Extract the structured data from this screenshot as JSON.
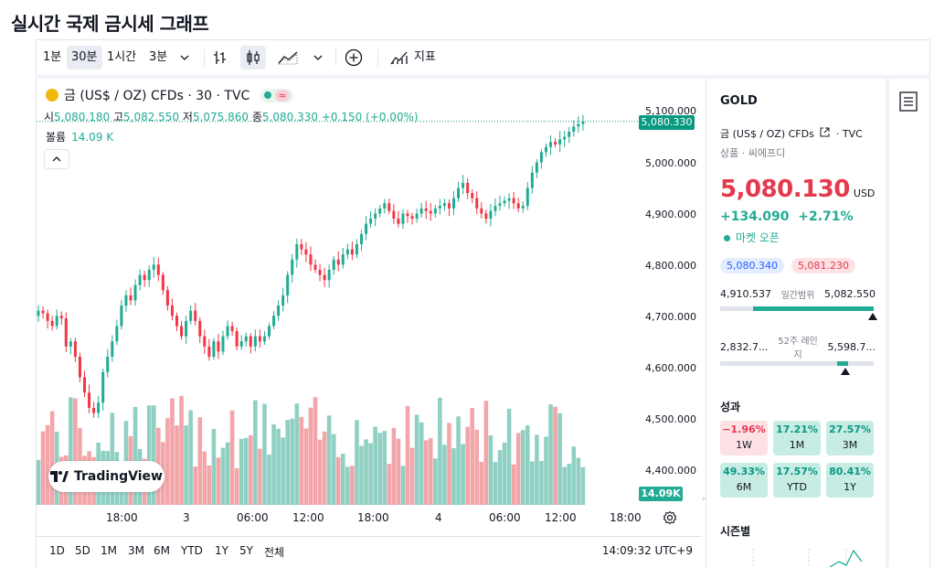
{
  "page": {
    "title": "실시간 국제 금시세 그래프"
  },
  "toolbar": {
    "intervals": [
      "1분",
      "30분",
      "1시간",
      "3분"
    ],
    "active_interval": "30분",
    "indicators_label": "지표",
    "icons": [
      "chevron-down-icon",
      "bar-style-icon",
      "candle-style-icon",
      "area-style-icon",
      "chevron-down-icon",
      "add-compare-icon",
      "indicators-icon"
    ]
  },
  "legend": {
    "symbol": "금 (US$ / OZ) CFDs · 30 · TVC",
    "open_label": "시",
    "open": "5,080.180",
    "high_label": "고",
    "high": "5,082.550",
    "low_label": "저",
    "low": "5,075.860",
    "close_label": "종",
    "close": "5,080.330",
    "change": "+0.150 (+0.00%)",
    "volume_label": "볼륨",
    "volume": "14.09 K",
    "status_icon": "≈"
  },
  "price_axis": {
    "labels": [
      "5,100.000",
      "5,000.000",
      "4,900.000",
      "4,800.000",
      "4,700.000",
      "4,600.000",
      "4,500.000",
      "4,400.000"
    ],
    "current_price": "5,080.330",
    "current_volume": "14.09K"
  },
  "time_axis": {
    "labels": [
      "18:00",
      "3",
      "06:00",
      "12:00",
      "18:00",
      "4",
      "06:00",
      "12:00",
      "18:00"
    ]
  },
  "range_bar": {
    "ranges": [
      "1D",
      "5D",
      "1M",
      "3M",
      "6M",
      "YTD",
      "1Y",
      "5Y",
      "전체"
    ],
    "clock": "14:09:32 UTC+9"
  },
  "watermark": {
    "text": "TradingView"
  },
  "side": {
    "ticker": "GOLD",
    "name": "금 (US$ / OZ) CFDs",
    "exchange": "TVC",
    "category": "상품 · 씨에프디",
    "price": "5,080.130",
    "currency": "USD",
    "change_abs": "+134.090",
    "change_pct": "+2.71%",
    "market_status": "마켓 오픈",
    "bid": "5,080.340",
    "ask": "5,081.230",
    "day_low": "4,910.537",
    "day_range_label": "일간범위",
    "day_high": "5,082.550",
    "wk_low": "2,832.7...",
    "wk_range_label": "52주 레인지",
    "wk_high": "5,598.7...",
    "performance_label": "성과",
    "seasonals_label": "시즌별",
    "performance": [
      {
        "value": "−1.96%",
        "period": "1W",
        "dir": "dn"
      },
      {
        "value": "17.21%",
        "period": "1M",
        "dir": "up"
      },
      {
        "value": "27.57%",
        "period": "3M",
        "dir": "up"
      },
      {
        "value": "49.33%",
        "period": "6M",
        "dir": "up"
      },
      {
        "value": "17.57%",
        "period": "YTD",
        "dir": "up"
      },
      {
        "value": "80.41%",
        "period": "1Y",
        "dir": "up"
      }
    ]
  },
  "colors": {
    "up": "#22ab94",
    "down": "#f23645",
    "vol_up": "#8fd0c3",
    "vol_down": "#f3a5a9",
    "accent": "#089981"
  },
  "chart_data": {
    "type": "candlestick",
    "interval": "30m",
    "y_axis_range": [
      4350,
      5110
    ],
    "close_series": [
      4710,
      4705,
      4690,
      4680,
      4700,
      4695,
      4640,
      4650,
      4620,
      4580,
      4550,
      4520,
      4510,
      4530,
      4590,
      4620,
      4650,
      4680,
      4720,
      4740,
      4730,
      4760,
      4780,
      4770,
      4790,
      4800,
      4780,
      4750,
      4720,
      4700,
      4680,
      4660,
      4690,
      4710,
      4690,
      4660,
      4640,
      4620,
      4650,
      4630,
      4660,
      4680,
      4670,
      4640,
      4650,
      4660,
      4640,
      4660,
      4650,
      4660,
      4680,
      4700,
      4720,
      4740,
      4780,
      4810,
      4840,
      4830,
      4820,
      4800,
      4790,
      4780,
      4770,
      4790,
      4810,
      4800,
      4820,
      4830,
      4820,
      4840,
      4860,
      4880,
      4890,
      4900,
      4910,
      4920,
      4905,
      4890,
      4880,
      4900,
      4895,
      4890,
      4900,
      4910,
      4905,
      4900,
      4910,
      4915,
      4920,
      4910,
      4930,
      4950,
      4960,
      4940,
      4930,
      4910,
      4900,
      4890,
      4905,
      4915,
      4920,
      4925,
      4930,
      4920,
      4910,
      4915,
      4950,
      4980,
      5000,
      5020,
      5030,
      5040,
      5035,
      5045,
      5050,
      5060,
      5070,
      5075,
      5080
    ]
  }
}
